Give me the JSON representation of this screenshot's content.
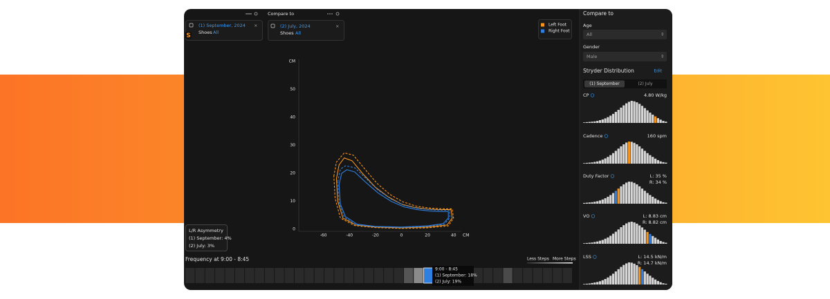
{
  "header": {
    "left_card": {
      "date": "(1) September, 2024",
      "filter_label": "Shoes",
      "filter_value": "All"
    },
    "compare_label": "Compare to",
    "right_card": {
      "date": "(2) July, 2024",
      "filter_label": "Shoes",
      "filter_value": "All"
    },
    "logo": "S"
  },
  "chart_data": {
    "type": "line",
    "x_label": "CM",
    "y_label": "CM",
    "xlim": [
      -80,
      46
    ],
    "ylim": [
      0,
      60
    ],
    "xticks": [
      -60,
      -40,
      -20,
      0,
      20,
      40
    ],
    "yticks": [
      0,
      10,
      20,
      30,
      40,
      50
    ],
    "series": [
      {
        "name": "Left Foot",
        "color": "#f7941d",
        "style": "solid",
        "x": [
          -50,
          -48,
          -44,
          -38,
          -30,
          -20,
          -10,
          0,
          10,
          20,
          30,
          38,
          39,
          35,
          20,
          0,
          -20,
          -35,
          -45,
          -49,
          -50
        ],
        "values": [
          18,
          23,
          25.5,
          24.5,
          20,
          15,
          11.5,
          9,
          7.8,
          7.2,
          7,
          7,
          4,
          1.5,
          0.8,
          0.5,
          0.8,
          1.5,
          4,
          10,
          18
        ]
      },
      {
        "name": "Right Foot",
        "color": "#2f7fe0",
        "style": "solid",
        "x": [
          -48,
          -46,
          -42,
          -36,
          -28,
          -18,
          -8,
          2,
          12,
          22,
          32,
          36,
          36,
          32,
          20,
          0,
          -20,
          -34,
          -43,
          -47,
          -48
        ],
        "values": [
          16,
          20,
          21.3,
          20.5,
          17,
          13,
          10,
          8,
          7,
          6.5,
          6.3,
          6.3,
          4,
          2,
          1.2,
          0.8,
          1,
          1.8,
          4.5,
          9,
          16
        ]
      },
      {
        "name": "Left Foot",
        "color": "#f7941d",
        "style": "dashed",
        "x": [
          -52,
          -50,
          -44,
          -37,
          -29,
          -19,
          -9,
          1,
          11,
          21,
          31,
          39,
          40,
          36,
          20,
          0,
          -20,
          -36,
          -47,
          -51,
          -52
        ],
        "values": [
          19,
          24,
          27.3,
          26.5,
          22,
          16.5,
          12.5,
          9.8,
          8.3,
          7.6,
          7.3,
          7.3,
          4,
          1.2,
          0.5,
          0.3,
          0.6,
          1.3,
          4,
          11,
          19
        ]
      },
      {
        "name": "Right Foot",
        "color": "#2f7fe0",
        "style": "dashed",
        "x": [
          -49,
          -47,
          -43,
          -36,
          -28,
          -18,
          -8,
          2,
          12,
          22,
          32,
          37,
          37,
          33,
          20,
          0,
          -20,
          -35,
          -44,
          -48,
          -49
        ],
        "values": [
          17,
          21.5,
          22.7,
          22,
          18.5,
          14,
          10.8,
          8.6,
          7.5,
          7,
          6.8,
          6.8,
          4,
          1.8,
          1,
          0.6,
          0.9,
          1.6,
          4.3,
          9.5,
          17
        ]
      }
    ]
  },
  "asymmetry": {
    "title": "L/R Asymmetry",
    "lines": [
      "(1) September: 4%",
      "(2) July: 3%"
    ]
  },
  "timeline": {
    "title": "Frequency at 9:00 - 8:45",
    "less": "Less Steps",
    "more": "More Steps",
    "tooltip": [
      "9:00 - 8:45",
      "(1) September: 18%",
      "(2) July: 19%"
    ]
  },
  "sidebar": {
    "title": "Compare to",
    "age": {
      "label": "Age",
      "value": "All"
    },
    "gender": {
      "label": "Gender",
      "value": "Male"
    },
    "distribution": {
      "title": "Stryder Distribution",
      "edit": "Edit",
      "tabs": [
        "(1) September",
        "(2) July"
      ],
      "metrics": [
        {
          "name": "CP",
          "values": [
            "4.80 W/kg"
          ],
          "bars": [
            2,
            3,
            4,
            5,
            6,
            8,
            11,
            14,
            18,
            23,
            29,
            36,
            44,
            52,
            61,
            70,
            78,
            84,
            88,
            86,
            82,
            76,
            68,
            59,
            50,
            41,
            33,
            26,
            19,
            13,
            8,
            5
          ],
          "highlight": [
            {
              "index": 27,
              "color": "#f7941d"
            }
          ]
        },
        {
          "name": "Cadence",
          "values": [
            "160 spm"
          ],
          "bars": [
            2,
            3,
            4,
            5,
            7,
            9,
            12,
            16,
            21,
            27,
            34,
            42,
            51,
            60,
            69,
            77,
            84,
            88,
            87,
            83,
            77,
            69,
            60,
            51,
            42,
            34,
            27,
            20,
            14,
            9,
            6,
            4
          ],
          "highlight": [
            {
              "index": 17,
              "color": "#f7941d"
            }
          ]
        },
        {
          "name": "Duty Factor",
          "values": [
            "L: 35 %",
            "R: 34 %"
          ],
          "bars": [
            3,
            4,
            5,
            6,
            8,
            10,
            13,
            17,
            22,
            28,
            35,
            43,
            52,
            61,
            70,
            78,
            85,
            89,
            88,
            84,
            78,
            70,
            61,
            52,
            43,
            35,
            28,
            21,
            15,
            10,
            6,
            4
          ],
          "highlight": [
            {
              "index": 12,
              "color": "#2f7fe0"
            },
            {
              "index": 13,
              "color": "#f7941d"
            }
          ]
        },
        {
          "name": "VO",
          "values": [
            "L: 8.83 cm",
            "R: 8.82 cm"
          ],
          "bars": [
            2,
            3,
            4,
            5,
            7,
            9,
            12,
            15,
            20,
            25,
            32,
            40,
            48,
            57,
            66,
            74,
            81,
            86,
            88,
            85,
            80,
            73,
            65,
            56,
            47,
            39,
            31,
            24,
            17,
            11,
            7,
            4
          ],
          "highlight": [
            {
              "index": 24,
              "color": "#f7941d"
            },
            {
              "index": 25,
              "color": "#2f7fe0"
            }
          ]
        },
        {
          "name": "LSS",
          "values": [
            "L: 14.5 kN/m",
            "R: 14.7 kN/m"
          ],
          "bars": [
            2,
            3,
            4,
            6,
            8,
            10,
            13,
            17,
            22,
            28,
            35,
            43,
            52,
            61,
            70,
            78,
            84,
            88,
            87,
            83,
            77,
            70,
            61,
            52,
            43,
            35,
            27,
            20,
            14,
            9,
            5,
            3
          ],
          "highlight": [
            {
              "index": 21,
              "color": "#f7941d"
            },
            {
              "index": 22,
              "color": "#2f7fe0"
            }
          ]
        }
      ]
    }
  }
}
